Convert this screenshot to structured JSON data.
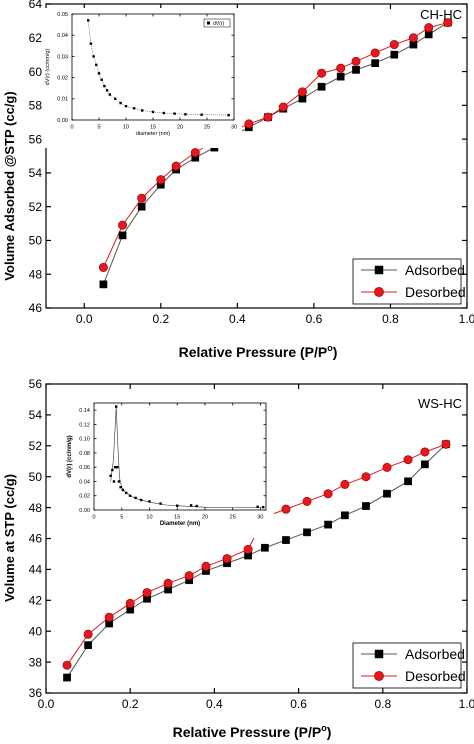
{
  "chart_data": [
    {
      "type": "scatter",
      "title": "",
      "panel_label": "CH-HC",
      "xlabel": "Relative Pressure (P/P",
      "xlabel_sup": "o",
      "xlabel_close": ")",
      "ylabel": "Volume Adsorbed @STP (cc/g)",
      "xlim": [
        -0.1,
        1.0
      ],
      "ylim": [
        46,
        64
      ],
      "xticks": [
        {
          "v": 0.0,
          "label": "0.0"
        },
        {
          "v": 0.2,
          "label": "0.2"
        },
        {
          "v": 0.4,
          "label": "0.4"
        },
        {
          "v": 0.6,
          "label": "0.6"
        },
        {
          "v": 0.8,
          "label": "0.8"
        },
        {
          "v": 1.0,
          "label": "1.0"
        }
      ],
      "yticks": [
        {
          "v": 46,
          "label": "46"
        },
        {
          "v": 48,
          "label": "48"
        },
        {
          "v": 50,
          "label": "50"
        },
        {
          "v": 52,
          "label": "52"
        },
        {
          "v": 54,
          "label": "54"
        },
        {
          "v": 56,
          "label": "56"
        },
        {
          "v": 58,
          "label": "58"
        },
        {
          "v": 60,
          "label": "60"
        },
        {
          "v": 62,
          "label": "62"
        },
        {
          "v": 64,
          "label": "64"
        }
      ],
      "legend_position": "bottom-right",
      "series": [
        {
          "name": "Adsorbed",
          "marker": "square",
          "color": "#000000",
          "line": "#555555",
          "x": [
            0.05,
            0.1,
            0.15,
            0.2,
            0.24,
            0.29,
            0.34,
            0.38,
            0.43,
            0.48,
            0.52,
            0.57,
            0.62,
            0.67,
            0.71,
            0.76,
            0.81,
            0.86,
            0.9,
            0.95
          ],
          "y": [
            47.4,
            50.3,
            52.0,
            53.3,
            54.2,
            54.9,
            55.5,
            56.1,
            56.7,
            57.3,
            57.8,
            58.4,
            59.1,
            59.7,
            60.1,
            60.5,
            61.0,
            61.6,
            62.2,
            62.9
          ]
        },
        {
          "name": "Desorbed",
          "marker": "circle",
          "color": "#e8161e",
          "line": "#e8161e",
          "x": [
            0.05,
            0.1,
            0.15,
            0.2,
            0.24,
            0.29,
            0.34,
            0.38,
            0.43,
            0.48,
            0.52,
            0.57,
            0.62,
            0.67,
            0.71,
            0.76,
            0.81,
            0.86,
            0.9,
            0.95
          ],
          "y": [
            48.4,
            50.9,
            52.5,
            53.6,
            54.4,
            55.2,
            55.9,
            56.4,
            56.9,
            57.3,
            57.9,
            58.8,
            59.9,
            60.2,
            60.6,
            61.1,
            61.6,
            62.0,
            62.6,
            62.9
          ]
        }
      ],
      "inset": {
        "type": "scatter",
        "xlabel": "diameter (nm)",
        "ylabel": "dV(r) (cc/nm/g)",
        "legend": "dV(r)",
        "xlim": [
          0,
          30
        ],
        "ylim": [
          0,
          0.05
        ],
        "xticks": [
          {
            "v": 0,
            "label": "0"
          },
          {
            "v": 5,
            "label": "5"
          },
          {
            "v": 10,
            "label": "10"
          },
          {
            "v": 15,
            "label": "15"
          },
          {
            "v": 20,
            "label": "20"
          },
          {
            "v": 25,
            "label": "25"
          },
          {
            "v": 30,
            "label": "30"
          }
        ],
        "yticks": [
          {
            "v": 0.0,
            "label": "0.00"
          },
          {
            "v": 0.01,
            "label": "0.01"
          },
          {
            "v": 0.02,
            "label": "0.02"
          },
          {
            "v": 0.03,
            "label": "0.03"
          },
          {
            "v": 0.04,
            "label": "0.04"
          },
          {
            "v": 0.05,
            "label": "0.05"
          }
        ],
        "x": [
          3.0,
          3.5,
          4.0,
          4.5,
          5.0,
          5.5,
          6.0,
          6.5,
          7.0,
          8.0,
          9.0,
          10.0,
          11.5,
          13.0,
          15.0,
          17.0,
          19.0,
          21.0,
          24.0,
          29.0
        ],
        "y": [
          0.047,
          0.036,
          0.03,
          0.026,
          0.022,
          0.019,
          0.016,
          0.014,
          0.012,
          0.01,
          0.008,
          0.0065,
          0.0055,
          0.0045,
          0.0038,
          0.0033,
          0.003,
          0.0027,
          0.0025,
          0.0023
        ]
      }
    },
    {
      "type": "scatter",
      "title": "",
      "panel_label": "WS-HC",
      "xlabel": "Relative Pressure (P/P",
      "xlabel_sup": "o",
      "xlabel_close": ")",
      "ylabel": "Volume at STP (cc/g)",
      "xlim": [
        0.0,
        1.0
      ],
      "ylim": [
        36,
        56
      ],
      "xticks": [
        {
          "v": 0.0,
          "label": "0.0"
        },
        {
          "v": 0.2,
          "label": "0.2"
        },
        {
          "v": 0.4,
          "label": "0.4"
        },
        {
          "v": 0.6,
          "label": "0.6"
        },
        {
          "v": 0.8,
          "label": "0.8"
        },
        {
          "v": 1.0,
          "label": "1.0"
        }
      ],
      "yticks": [
        {
          "v": 36,
          "label": "36"
        },
        {
          "v": 38,
          "label": "38"
        },
        {
          "v": 40,
          "label": "40"
        },
        {
          "v": 42,
          "label": "42"
        },
        {
          "v": 44,
          "label": "44"
        },
        {
          "v": 46,
          "label": "46"
        },
        {
          "v": 48,
          "label": "48"
        },
        {
          "v": 50,
          "label": "50"
        },
        {
          "v": 52,
          "label": "52"
        },
        {
          "v": 54,
          "label": "54"
        },
        {
          "v": 56,
          "label": "56"
        }
      ],
      "legend_position": "bottom-right",
      "series": [
        {
          "name": "Adsorbed",
          "marker": "square",
          "color": "#000000",
          "line": "#555555",
          "x": [
            0.05,
            0.1,
            0.15,
            0.2,
            0.24,
            0.29,
            0.34,
            0.38,
            0.43,
            0.48,
            0.52,
            0.57,
            0.62,
            0.67,
            0.71,
            0.76,
            0.81,
            0.86,
            0.9,
            0.95
          ],
          "y": [
            37.0,
            39.1,
            40.5,
            41.4,
            42.1,
            42.7,
            43.3,
            43.9,
            44.4,
            44.9,
            45.4,
            45.9,
            46.4,
            46.9,
            47.5,
            48.1,
            48.9,
            49.7,
            50.8,
            52.1
          ]
        },
        {
          "name": "Desorbed",
          "marker": "circle",
          "color": "#e8161e",
          "line": "#e8161e",
          "x": [
            0.05,
            0.1,
            0.15,
            0.2,
            0.24,
            0.29,
            0.34,
            0.38,
            0.43,
            0.48,
            0.52,
            0.57,
            0.62,
            0.67,
            0.71,
            0.76,
            0.81,
            0.86,
            0.9,
            0.95
          ],
          "y": [
            37.8,
            39.8,
            40.9,
            41.8,
            42.5,
            43.1,
            43.6,
            44.2,
            44.7,
            45.3,
            47.4,
            47.9,
            48.4,
            48.9,
            49.5,
            50.0,
            50.6,
            51.1,
            51.6,
            52.1
          ]
        }
      ],
      "inset": {
        "type": "scatter",
        "xlabel": "Diameter (nm)",
        "ylabel": "dV(r) (cc/nm/g)",
        "xlim": [
          0,
          31
        ],
        "ylim": [
          0,
          0.15
        ],
        "xticks": [
          {
            "v": 0,
            "label": "0"
          },
          {
            "v": 5,
            "label": "5"
          },
          {
            "v": 10,
            "label": "10"
          },
          {
            "v": 15,
            "label": "15"
          },
          {
            "v": 20,
            "label": "20"
          },
          {
            "v": 25,
            "label": "25"
          },
          {
            "v": 30,
            "label": "30"
          }
        ],
        "yticks": [
          {
            "v": 0.0,
            "label": "0.00"
          },
          {
            "v": 0.02,
            "label": "0.02"
          },
          {
            "v": 0.04,
            "label": "0.04"
          },
          {
            "v": 0.06,
            "label": "0.06"
          },
          {
            "v": 0.08,
            "label": "0.08"
          },
          {
            "v": 0.1,
            "label": "0.10"
          },
          {
            "v": 0.12,
            "label": "0.12"
          },
          {
            "v": 0.14,
            "label": "0.14"
          }
        ],
        "x": [
          3.0,
          3.3,
          3.6,
          3.8,
          4.0,
          4.2,
          4.5,
          4.8,
          5.2,
          5.8,
          6.5,
          7.5,
          8.5,
          10.0,
          12.0,
          15.0,
          17.5,
          18.5,
          29.5,
          30.5
        ],
        "y": [
          0.048,
          0.056,
          0.04,
          0.06,
          0.145,
          0.06,
          0.04,
          0.032,
          0.028,
          0.024,
          0.02,
          0.017,
          0.014,
          0.012,
          0.009,
          0.006,
          0.0065,
          0.0055,
          0.0045,
          0.004
        ],
        "curve_x": [
          3.0,
          3.5,
          4.0,
          4.3,
          4.6,
          5.0,
          5.5,
          6.5,
          8.0,
          10.0,
          13.0,
          16.0,
          20.0,
          25.0,
          30.5
        ],
        "curve_y": [
          0.04,
          0.07,
          0.145,
          0.09,
          0.045,
          0.032,
          0.026,
          0.02,
          0.015,
          0.011,
          0.007,
          0.0055,
          0.004,
          0.0035,
          0.0035
        ]
      }
    }
  ]
}
